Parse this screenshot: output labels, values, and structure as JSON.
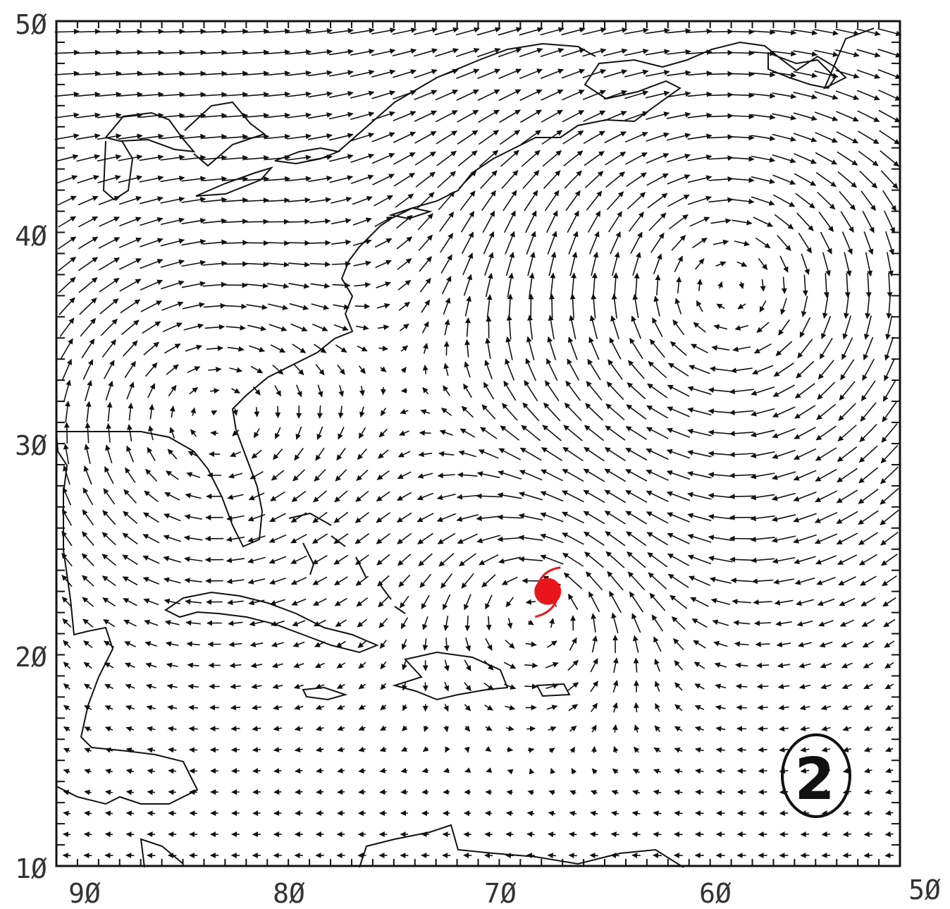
{
  "map": {
    "projection": "lon-lat",
    "lon_range": [
      -90,
      -50
    ],
    "lat_range": [
      10,
      50
    ],
    "x_tick_labels": [
      "9Ø",
      "8Ø",
      "7Ø",
      "6Ø",
      "5Ø"
    ],
    "y_tick_labels": [
      "5Ø",
      "4Ø",
      "3Ø",
      "2Ø",
      "1Ø"
    ],
    "vector_grid": {
      "lon_step": 1,
      "lat_step": 1
    },
    "storm_marker": {
      "lon": -66.7,
      "lat": 23.0,
      "color": "#e8161b",
      "icon": "hurricane-icon"
    },
    "panel_label": "2",
    "colors": {
      "ink": "#111111",
      "storm": "#e8161b"
    }
  }
}
